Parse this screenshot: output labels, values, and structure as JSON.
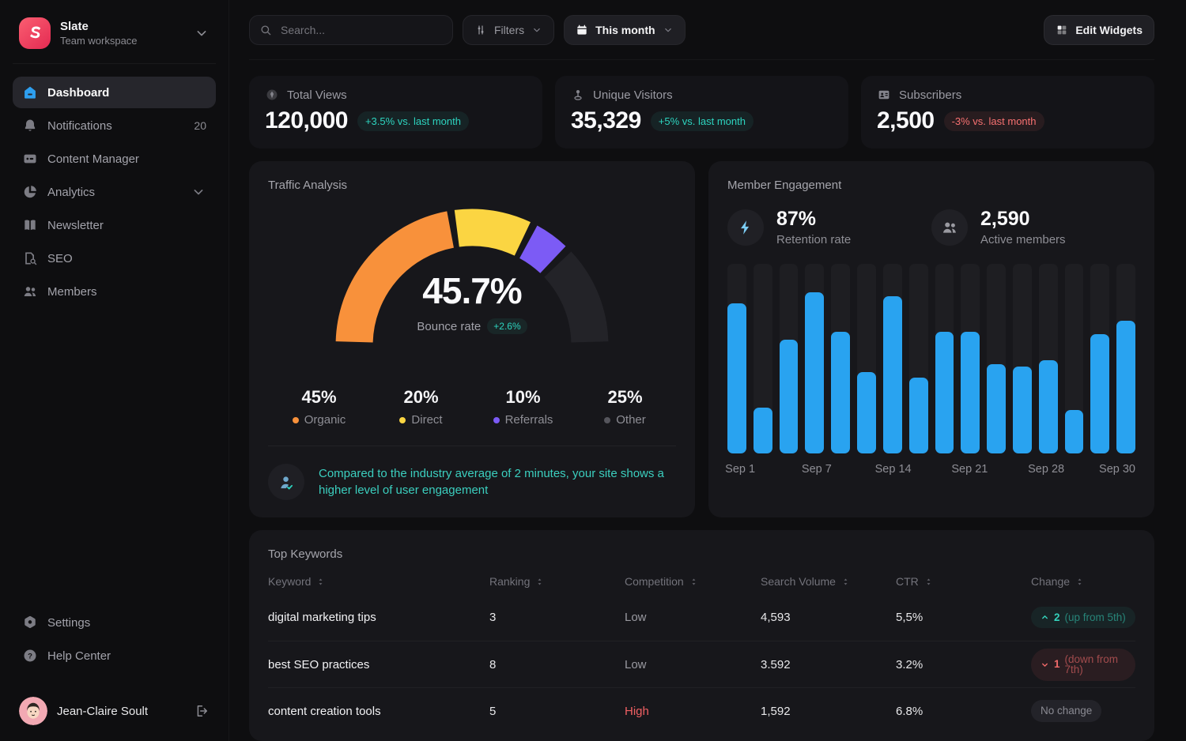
{
  "topbar": {
    "search_placeholder": "Search...",
    "filters_label": "Filters",
    "date_range_label": "This month",
    "edit_widgets_label": "Edit Widgets"
  },
  "sidebar": {
    "workspace": {
      "name": "Slate",
      "subtitle": "Team workspace"
    },
    "items": [
      {
        "icon": "home-icon",
        "label": "Dashboard",
        "active": true
      },
      {
        "icon": "bell-icon",
        "label": "Notifications",
        "badge": "20"
      },
      {
        "icon": "content-icon",
        "label": "Content Manager"
      },
      {
        "icon": "analytics-icon",
        "label": "Analytics",
        "chevron": true
      },
      {
        "icon": "newsletter-icon",
        "label": "Newsletter"
      },
      {
        "icon": "seo-icon",
        "label": "SEO"
      },
      {
        "icon": "members-icon",
        "label": "Members"
      }
    ],
    "footer_items": [
      {
        "icon": "settings-icon",
        "label": "Settings"
      },
      {
        "icon": "help-icon",
        "label": "Help Center"
      }
    ],
    "user": {
      "name": "Jean-Claire Soult"
    }
  },
  "stats": {
    "cards": [
      {
        "icon": "views-icon",
        "label": "Total Views",
        "value": "120,000",
        "delta": "+3.5% vs. last month",
        "delta_type": "positive"
      },
      {
        "icon": "visitor-icon",
        "label": "Unique Visitors",
        "value": "35,329",
        "delta": "+5% vs. last month",
        "delta_type": "positive"
      },
      {
        "icon": "subscribers-icon",
        "label": "Subscribers",
        "value": "2,500",
        "delta": "-3% vs. last month",
        "delta_type": "negative"
      }
    ]
  },
  "traffic": {
    "title": "Traffic Analysis",
    "center_value": "45.7%",
    "center_label": "Bounce rate",
    "center_delta": "+2.6%",
    "note": "Compared to the industry average of 2 minutes, your site shows a higher level of user engagement"
  },
  "engagement": {
    "title": "Member Engagement",
    "stats": [
      {
        "icon": "bolt-icon",
        "icon_color": "#7CCDF4",
        "value": "87%",
        "label": "Retention rate"
      },
      {
        "icon": "people-icon",
        "icon_color": "#9A9AA1",
        "value": "2,590",
        "label": "Active members"
      }
    ]
  },
  "keywords": {
    "title": "Top Keywords",
    "columns": [
      "Keyword",
      "Ranking",
      "Competition",
      "Search Volume",
      "CTR",
      "Change"
    ],
    "rows": [
      {
        "keyword": "digital marketing tips",
        "ranking": "3",
        "competition": "Low",
        "competition_level": "low",
        "volume": "4,593",
        "ctr": "5,5%",
        "change": {
          "dir": "up",
          "value": "2",
          "note": "(up from 5th)"
        }
      },
      {
        "keyword": "best SEO practices",
        "ranking": "8",
        "competition": "Low",
        "competition_level": "low",
        "volume": "3.592",
        "ctr": "3.2%",
        "change": {
          "dir": "down",
          "value": "1",
          "note": "(down from 7th)"
        }
      },
      {
        "keyword": "content creation tools",
        "ranking": "5",
        "competition": "High",
        "competition_level": "high",
        "volume": "1,592",
        "ctr": "6.8%",
        "change": {
          "dir": "none",
          "label": "No change"
        }
      }
    ]
  },
  "colors": {
    "accent_blue": "#29A3F0",
    "teal_positive": "#2DD4BF",
    "red_negative": "#F87171",
    "gauge_orange": "#F8913B",
    "gauge_yellow": "#FBD542",
    "gauge_purple": "#7C5BF5"
  },
  "chart_data": [
    {
      "type": "pie",
      "variant": "half-donut-gauge",
      "title": "Traffic Analysis",
      "center_annotation": "45.7% Bounce rate +2.6%",
      "legend_position": "bottom",
      "segments": [
        {
          "label": "Organic",
          "value": 45,
          "color": "#F8913B"
        },
        {
          "label": "Direct",
          "value": 20,
          "color": "#FBD542"
        },
        {
          "label": "Referrals",
          "value": 10,
          "color": "#7C5BF5"
        },
        {
          "label": "Other",
          "value": 25,
          "color": "#232328",
          "legend_dot": "#55555C"
        }
      ]
    },
    {
      "type": "bar",
      "title": "Member Engagement daily activity (Sep 1 - Sep 30)",
      "xlabel": "",
      "ylabel": "",
      "grid": false,
      "legend": "none",
      "bar_color": "#29A3F0",
      "value_scale": "relative height percent, 0-100 (no y-axis shown)",
      "values": [
        79,
        24,
        60,
        85,
        64,
        43,
        83,
        40,
        64,
        64,
        47,
        46,
        49,
        23,
        63,
        70
      ],
      "x_tick_labels": [
        "Sep 1",
        "Sep 7",
        "Sep 14",
        "Sep 21",
        "Sep 28",
        "Sep 30"
      ],
      "tick_bar_indices": [
        0,
        3,
        6,
        9,
        12,
        15
      ]
    }
  ]
}
